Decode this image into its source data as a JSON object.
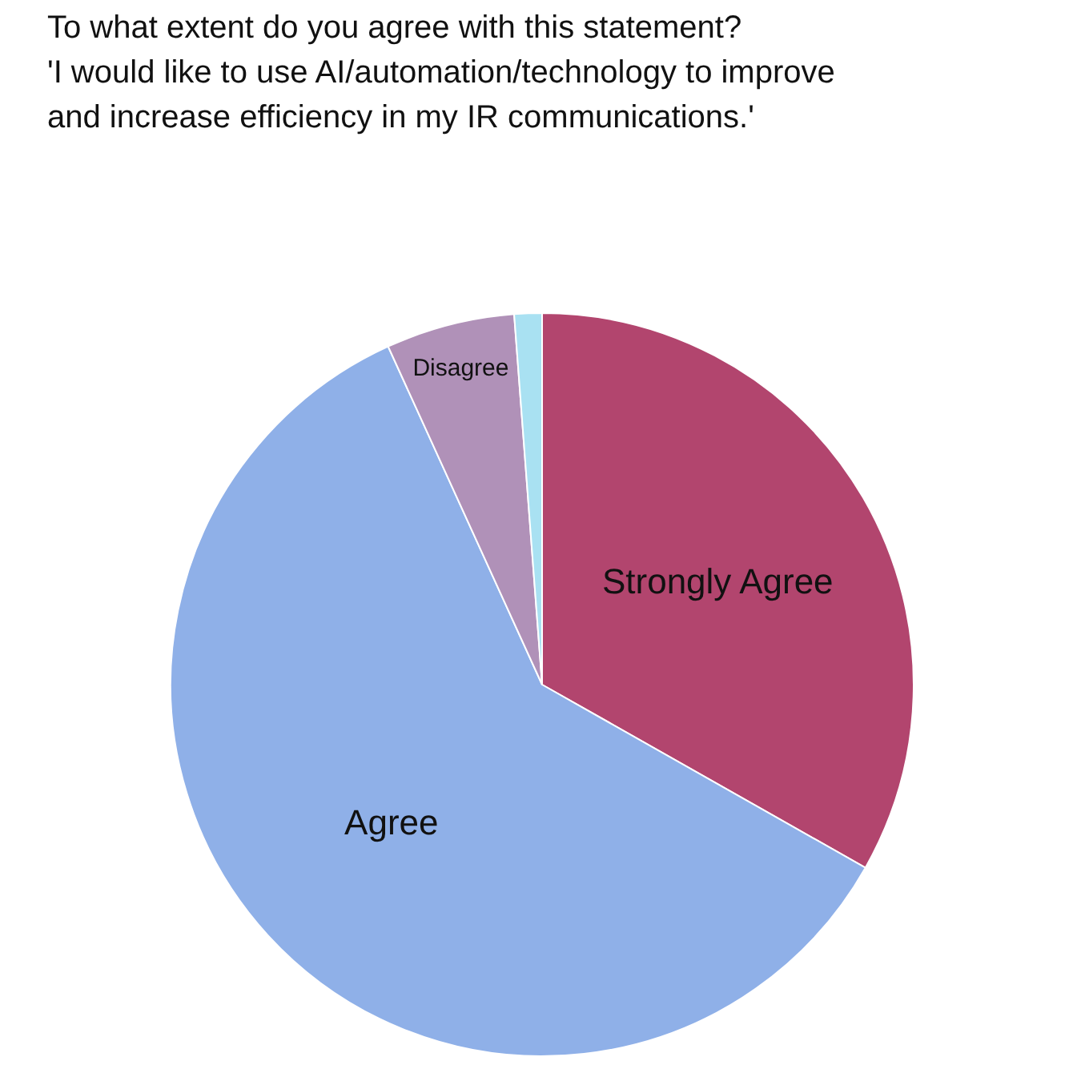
{
  "chart_data": {
    "type": "pie",
    "title": "To what extent do you agree with this statement?",
    "subtitle": "'I would like to use AI/automation/technology to improve\nand increase efficiency in my IR communications.'",
    "categories": [
      "Strongly Agree",
      "Agree",
      "Disagree",
      null
    ],
    "values": [
      33.2,
      60,
      5.6,
      1.2
    ],
    "colors": [
      "#b2456e",
      "#8fb0e8",
      "#b091b8",
      "#a9e1f2"
    ]
  }
}
